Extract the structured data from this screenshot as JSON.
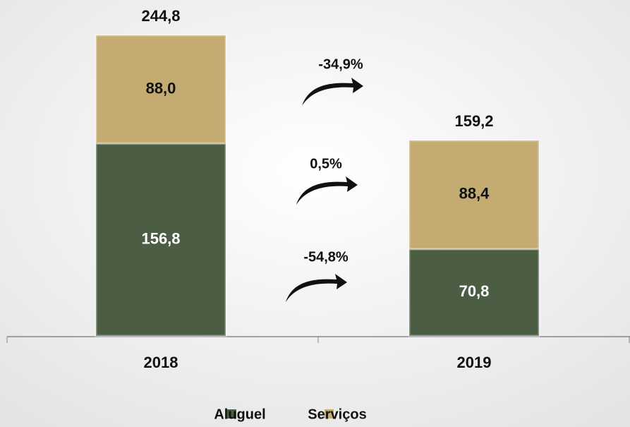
{
  "chart_data": {
    "type": "stacked_bar",
    "categories": [
      "2018",
      "2019"
    ],
    "series": [
      {
        "name": "Aluguel",
        "color": "#4b5e43",
        "values": [
          156.8,
          70.8
        ],
        "value_labels": [
          "156,8",
          "70,8"
        ]
      },
      {
        "name": "Serviços",
        "color": "#c4ab72",
        "values": [
          88.0,
          88.4
        ],
        "value_labels": [
          "88,0",
          "88,4"
        ]
      }
    ],
    "totals": {
      "values": [
        244.8,
        159.2
      ],
      "value_labels": [
        "244,8",
        "159,2"
      ]
    },
    "annotations": [
      {
        "text": "-34,9%"
      },
      {
        "text": "0,5%"
      },
      {
        "text": "-54,8%"
      }
    ],
    "legend": "bottom"
  }
}
